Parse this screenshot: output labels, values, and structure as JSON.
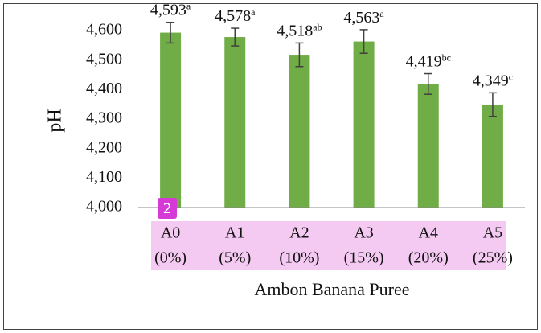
{
  "chart_data": {
    "type": "bar",
    "y_label": "pH",
    "x_label": "Ambon Banana Puree",
    "categories": [
      [
        "A0",
        "(0%)"
      ],
      [
        "A1",
        "(5%)"
      ],
      [
        "A2",
        "(10%)"
      ],
      [
        "A3",
        "(15%)"
      ],
      [
        "A4",
        "(20%)"
      ],
      [
        "A5",
        "(25%)"
      ]
    ],
    "values": [
      4.593,
      4.578,
      4.518,
      4.563,
      4.419,
      4.349
    ],
    "value_labels": [
      "4,593",
      "4,578",
      "4,518",
      "4,563",
      "4,419",
      "4,349"
    ],
    "significance": [
      "a",
      "a",
      "ab",
      "a",
      "bc",
      "c"
    ],
    "errors": [
      0.035,
      0.03,
      0.04,
      0.04,
      0.035,
      0.04
    ],
    "color": "#70ad47",
    "ylim": [
      4.0,
      4.6
    ],
    "yticks": [
      {
        "value": 4.0,
        "label": "4,000"
      },
      {
        "value": 4.1,
        "label": "4,100"
      },
      {
        "value": 4.2,
        "label": "4,200"
      },
      {
        "value": 4.3,
        "label": "4,300"
      },
      {
        "value": 4.4,
        "label": "4,400"
      },
      {
        "value": 4.5,
        "label": "4,500"
      },
      {
        "value": 4.6,
        "label": "4,600"
      }
    ],
    "grid": false
  },
  "overlay": {
    "badge": "2"
  }
}
